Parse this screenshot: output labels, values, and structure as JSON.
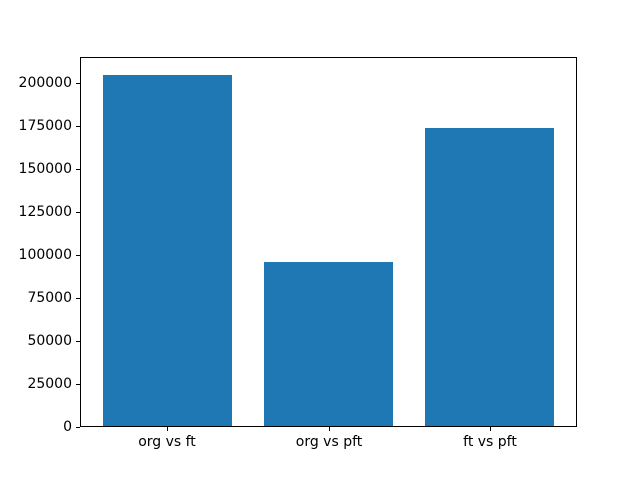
{
  "chart_data": {
    "type": "bar",
    "categories": [
      "org vs ft",
      "org vs pft",
      "ft vs pft"
    ],
    "values": [
      204900,
      95700,
      173800
    ],
    "title": "",
    "xlabel": "",
    "ylabel": "",
    "ylim": [
      0,
      215145
    ],
    "xlim": [
      -0.54,
      2.54
    ],
    "yticks": [
      0,
      25000,
      50000,
      75000,
      100000,
      125000,
      150000,
      175000,
      200000
    ],
    "ytick_labels": [
      "0",
      "25000",
      "50000",
      "75000",
      "100000",
      "125000",
      "150000",
      "175000",
      "200000"
    ],
    "bar_width": 0.8,
    "grid": false,
    "legend_position": "none"
  },
  "colors": {
    "bar": "#1f77b4",
    "background": "#ffffff",
    "spine": "#000000",
    "text": "#000000"
  }
}
